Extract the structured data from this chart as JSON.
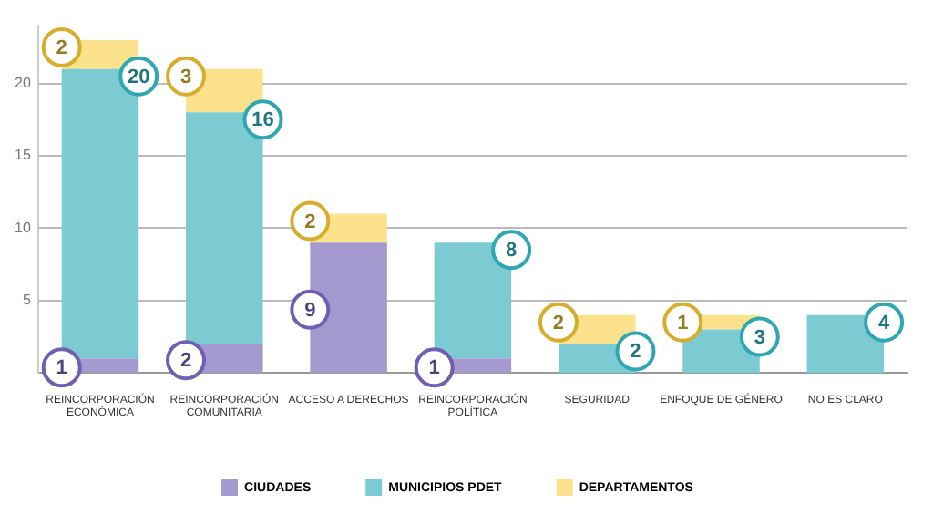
{
  "chart_data": {
    "type": "bar",
    "stacked": true,
    "categories": [
      "REINCORPORACIÓN ECONÓMICA",
      "REINCORPORACIÓN COMUNITARIA",
      "ACCESO A DERECHOS",
      "REINCORPORACIÓN POLÍTICA",
      "SEGURIDAD",
      "ENFOQUE DE GÉNERO",
      "NO ES CLARO"
    ],
    "series": [
      {
        "name": "CIUDADES",
        "color": "#a59ad0",
        "values": [
          1,
          2,
          9,
          1,
          null,
          null,
          null
        ]
      },
      {
        "name": "MUNICIPIOS PDET",
        "color": "#7ccbd3",
        "values": [
          20,
          16,
          null,
          8,
          2,
          3,
          4
        ]
      },
      {
        "name": "DEPARTAMENTOS",
        "color": "#fde28e",
        "values": [
          2,
          3,
          2,
          null,
          2,
          1,
          null
        ]
      }
    ],
    "ylim": [
      0,
      24
    ],
    "yticks": [
      5,
      10,
      15,
      20
    ],
    "grid": "y",
    "legend": "bottom",
    "data_labels": true
  }
}
